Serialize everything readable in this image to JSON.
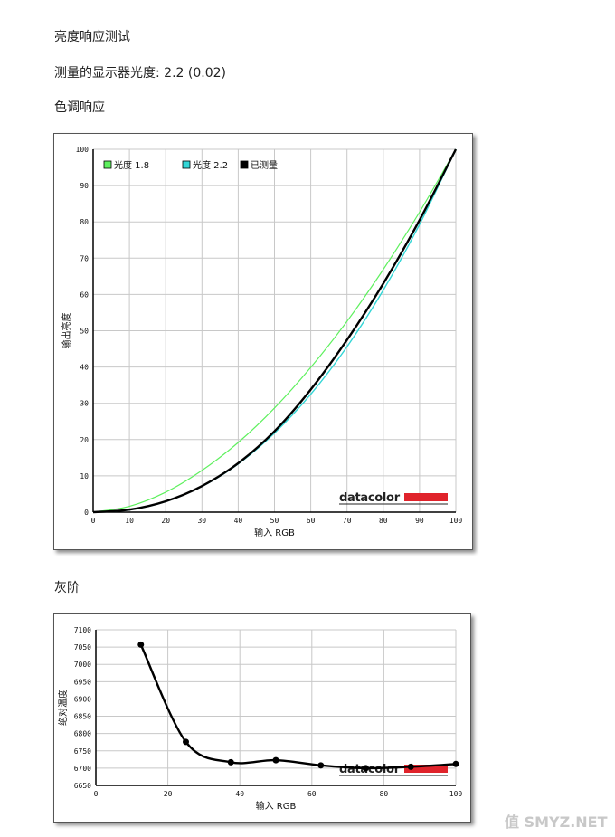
{
  "section_headings": {
    "brightness_response": "亮度响应测试",
    "measured_gamma": "测量的显示器光度: 2.2 (0.02)",
    "tone_response": "色调响应",
    "grayscale": "灰阶"
  },
  "watermark": "值 SMYZ.NET",
  "brand_logo": "datacolor",
  "colors": {
    "gamma18": "#5ef05e",
    "gamma22": "#33d6d6",
    "measured": "#000000",
    "brand_red": "#e0232b"
  },
  "chart_data": [
    {
      "type": "line",
      "title": "",
      "xlabel": "输入 RGB",
      "ylabel": "输出亮度",
      "xlim": [
        0,
        100
      ],
      "ylim": [
        0,
        100
      ],
      "x_ticks": [
        "0",
        "10",
        "20",
        "30",
        "40",
        "50",
        "60",
        "70",
        "80",
        "90",
        "100"
      ],
      "y_ticks": [
        "0",
        "10",
        "20",
        "30",
        "40",
        "50",
        "60",
        "70",
        "80",
        "90",
        "100"
      ],
      "grid": true,
      "legend_position": "top-left",
      "legend": [
        "光度 1.8",
        "光度 2.2",
        "已测量"
      ],
      "series": [
        {
          "name": "光度 1.8",
          "x": [
            0,
            10,
            20,
            30,
            40,
            50,
            60,
            70,
            80,
            90,
            100
          ],
          "y": [
            0,
            1.6,
            5.5,
            11.5,
            19.2,
            28.7,
            39.9,
            52.6,
            66.9,
            82.7,
            100
          ]
        },
        {
          "name": "光度 2.2",
          "x": [
            0,
            10,
            20,
            30,
            40,
            50,
            60,
            70,
            80,
            90,
            100
          ],
          "y": [
            0,
            0.6,
            2.9,
            7.1,
            13.3,
            21.8,
            32.5,
            45.6,
            61.2,
            79.3,
            100
          ]
        },
        {
          "name": "已测量",
          "x": [
            0,
            10,
            20,
            30,
            40,
            50,
            60,
            70,
            80,
            90,
            100
          ],
          "y": [
            0,
            0.7,
            3.0,
            7.2,
            13.5,
            22.3,
            33.8,
            47.5,
            63.0,
            80.5,
            100
          ]
        }
      ]
    },
    {
      "type": "line",
      "title": "",
      "xlabel": "输入 RGB",
      "ylabel": "绝对温度",
      "xlim": [
        0,
        100
      ],
      "ylim": [
        6650,
        7100
      ],
      "x_ticks": [
        "0",
        "20",
        "40",
        "60",
        "80",
        "100"
      ],
      "y_ticks": [
        "6650",
        "6700",
        "6750",
        "6800",
        "6850",
        "6900",
        "6950",
        "7000",
        "7050",
        "7100"
      ],
      "grid": true,
      "series": [
        {
          "name": "",
          "x": [
            12.5,
            25,
            37.5,
            50,
            62.5,
            75,
            87.5,
            100
          ],
          "y": [
            7057,
            6776,
            6717,
            6723,
            6708,
            6700,
            6704,
            6712
          ]
        }
      ]
    }
  ]
}
